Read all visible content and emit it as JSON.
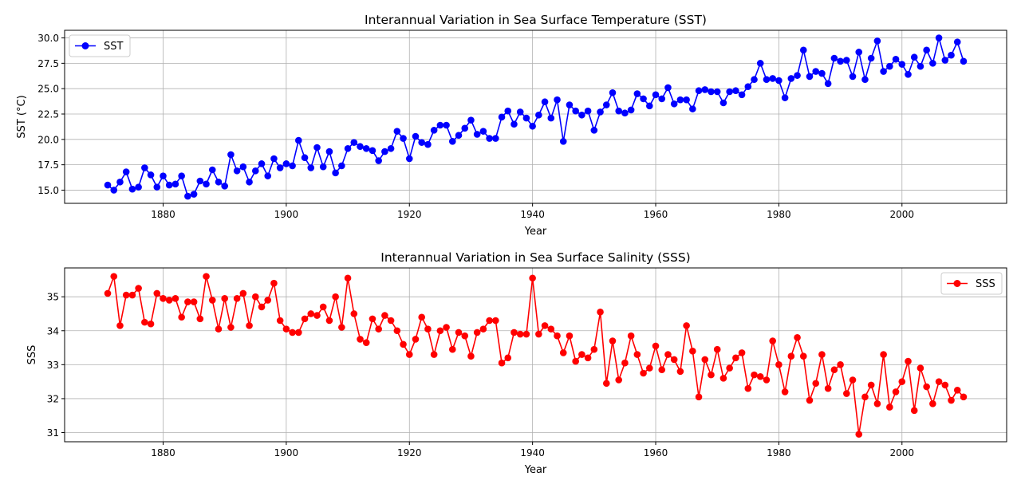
{
  "chart_data": [
    {
      "type": "line",
      "title": "Interannual Variation in Sea Surface Temperature (SST)",
      "xlabel": "Year",
      "ylabel": "SST (°C)",
      "xlim": [
        1864,
        2017
      ],
      "ylim": [
        13.7,
        30.75
      ],
      "xticks": [
        1880,
        1900,
        1920,
        1940,
        1960,
        1980,
        2000
      ],
      "yticks": [
        15.0,
        17.5,
        20.0,
        22.5,
        25.0,
        27.5,
        30.0
      ],
      "ytick_labels": [
        "15.0",
        "17.5",
        "20.0",
        "22.5",
        "25.0",
        "27.5",
        "30.0"
      ],
      "grid": true,
      "legend_position": "upper-left",
      "color": "#0000ff",
      "series": [
        {
          "name": "SST",
          "x_start": 1871,
          "x_end": 2010,
          "values": [
            15.5,
            15.0,
            15.8,
            16.8,
            15.1,
            15.3,
            17.2,
            16.5,
            15.3,
            16.4,
            15.5,
            15.6,
            16.4,
            14.4,
            14.6,
            15.9,
            15.6,
            17.0,
            15.8,
            15.4,
            18.5,
            16.9,
            17.3,
            15.8,
            16.9,
            17.6,
            16.4,
            18.1,
            17.2,
            17.6,
            17.4,
            19.9,
            18.2,
            17.2,
            19.2,
            17.3,
            18.8,
            16.7,
            17.4,
            19.1,
            19.7,
            19.3,
            19.1,
            18.9,
            17.9,
            18.8,
            19.1,
            20.8,
            20.1,
            18.1,
            20.3,
            19.7,
            19.5,
            20.9,
            21.4,
            21.4,
            19.8,
            20.4,
            21.1,
            21.9,
            20.5,
            20.8,
            20.1,
            20.1,
            22.2,
            22.8,
            21.5,
            22.7,
            22.1,
            21.3,
            22.4,
            23.7,
            22.1,
            23.9,
            19.8,
            23.4,
            22.8,
            22.4,
            22.8,
            20.9,
            22.7,
            23.4,
            24.6,
            22.8,
            22.6,
            22.9,
            24.5,
            24.0,
            23.3,
            24.4,
            24.0,
            25.1,
            23.5,
            23.9,
            23.9,
            23.0,
            24.8,
            24.9,
            24.7,
            24.7,
            23.6,
            24.7,
            24.8,
            24.4,
            25.2,
            25.9,
            27.5,
            25.9,
            26.0,
            25.8,
            24.1,
            26.0,
            26.3,
            28.8,
            26.2,
            26.7,
            26.5,
            25.5,
            28.0,
            27.7,
            27.8,
            26.2,
            28.6,
            25.9,
            28.0,
            29.7,
            26.7,
            27.2,
            27.9,
            27.4,
            26.4,
            28.1,
            27.2,
            28.8,
            27.5,
            30.0,
            27.8,
            28.3,
            29.6,
            27.7
          ]
        }
      ]
    },
    {
      "type": "line",
      "title": "Interannual Variation in Sea Surface Salinity (SSS)",
      "xlabel": "Year",
      "ylabel": "SSS",
      "xlim": [
        1864,
        2017
      ],
      "ylim": [
        30.73,
        35.85
      ],
      "xticks": [
        1880,
        1900,
        1920,
        1940,
        1960,
        1980,
        2000
      ],
      "yticks": [
        31,
        32,
        33,
        34,
        35
      ],
      "ytick_labels": [
        "31",
        "32",
        "33",
        "34",
        "35"
      ],
      "grid": true,
      "legend_position": "upper-right",
      "color": "#ff0000",
      "series": [
        {
          "name": "SSS",
          "x_start": 1871,
          "x_end": 2010,
          "values": [
            35.1,
            35.6,
            34.15,
            35.05,
            35.05,
            35.25,
            34.25,
            34.2,
            35.1,
            34.95,
            34.9,
            34.95,
            34.4,
            34.85,
            34.85,
            34.35,
            35.6,
            34.9,
            34.05,
            34.95,
            34.1,
            34.95,
            35.1,
            34.15,
            35.0,
            34.7,
            34.9,
            35.4,
            34.3,
            34.05,
            33.95,
            33.95,
            34.35,
            34.5,
            34.45,
            34.7,
            34.3,
            35.0,
            34.1,
            35.55,
            34.5,
            33.75,
            33.65,
            34.35,
            34.05,
            34.45,
            34.3,
            34.0,
            33.6,
            33.3,
            33.75,
            34.4,
            34.05,
            33.3,
            34.0,
            34.1,
            33.45,
            33.95,
            33.85,
            33.25,
            33.95,
            34.05,
            34.3,
            34.3,
            33.05,
            33.2,
            33.95,
            33.9,
            33.9,
            35.55,
            33.9,
            34.15,
            34.05,
            33.85,
            33.35,
            33.85,
            33.1,
            33.3,
            33.2,
            33.45,
            34.55,
            32.45,
            33.7,
            32.55,
            33.05,
            33.85,
            33.3,
            32.75,
            32.9,
            33.55,
            32.85,
            33.3,
            33.15,
            32.8,
            34.15,
            33.4,
            32.05,
            33.15,
            32.7,
            33.45,
            32.6,
            32.9,
            33.2,
            33.35,
            32.3,
            32.7,
            32.65,
            32.55,
            33.7,
            33.0,
            32.2,
            33.25,
            33.8,
            33.25,
            31.95,
            32.45,
            33.3,
            32.3,
            32.85,
            33.0,
            32.15,
            32.55,
            30.95,
            32.05,
            32.4,
            31.85,
            33.3,
            31.75,
            32.2,
            32.5,
            33.1,
            31.65,
            32.9,
            32.35,
            31.85,
            32.5,
            32.4,
            31.95,
            32.25,
            32.05
          ]
        }
      ]
    }
  ]
}
